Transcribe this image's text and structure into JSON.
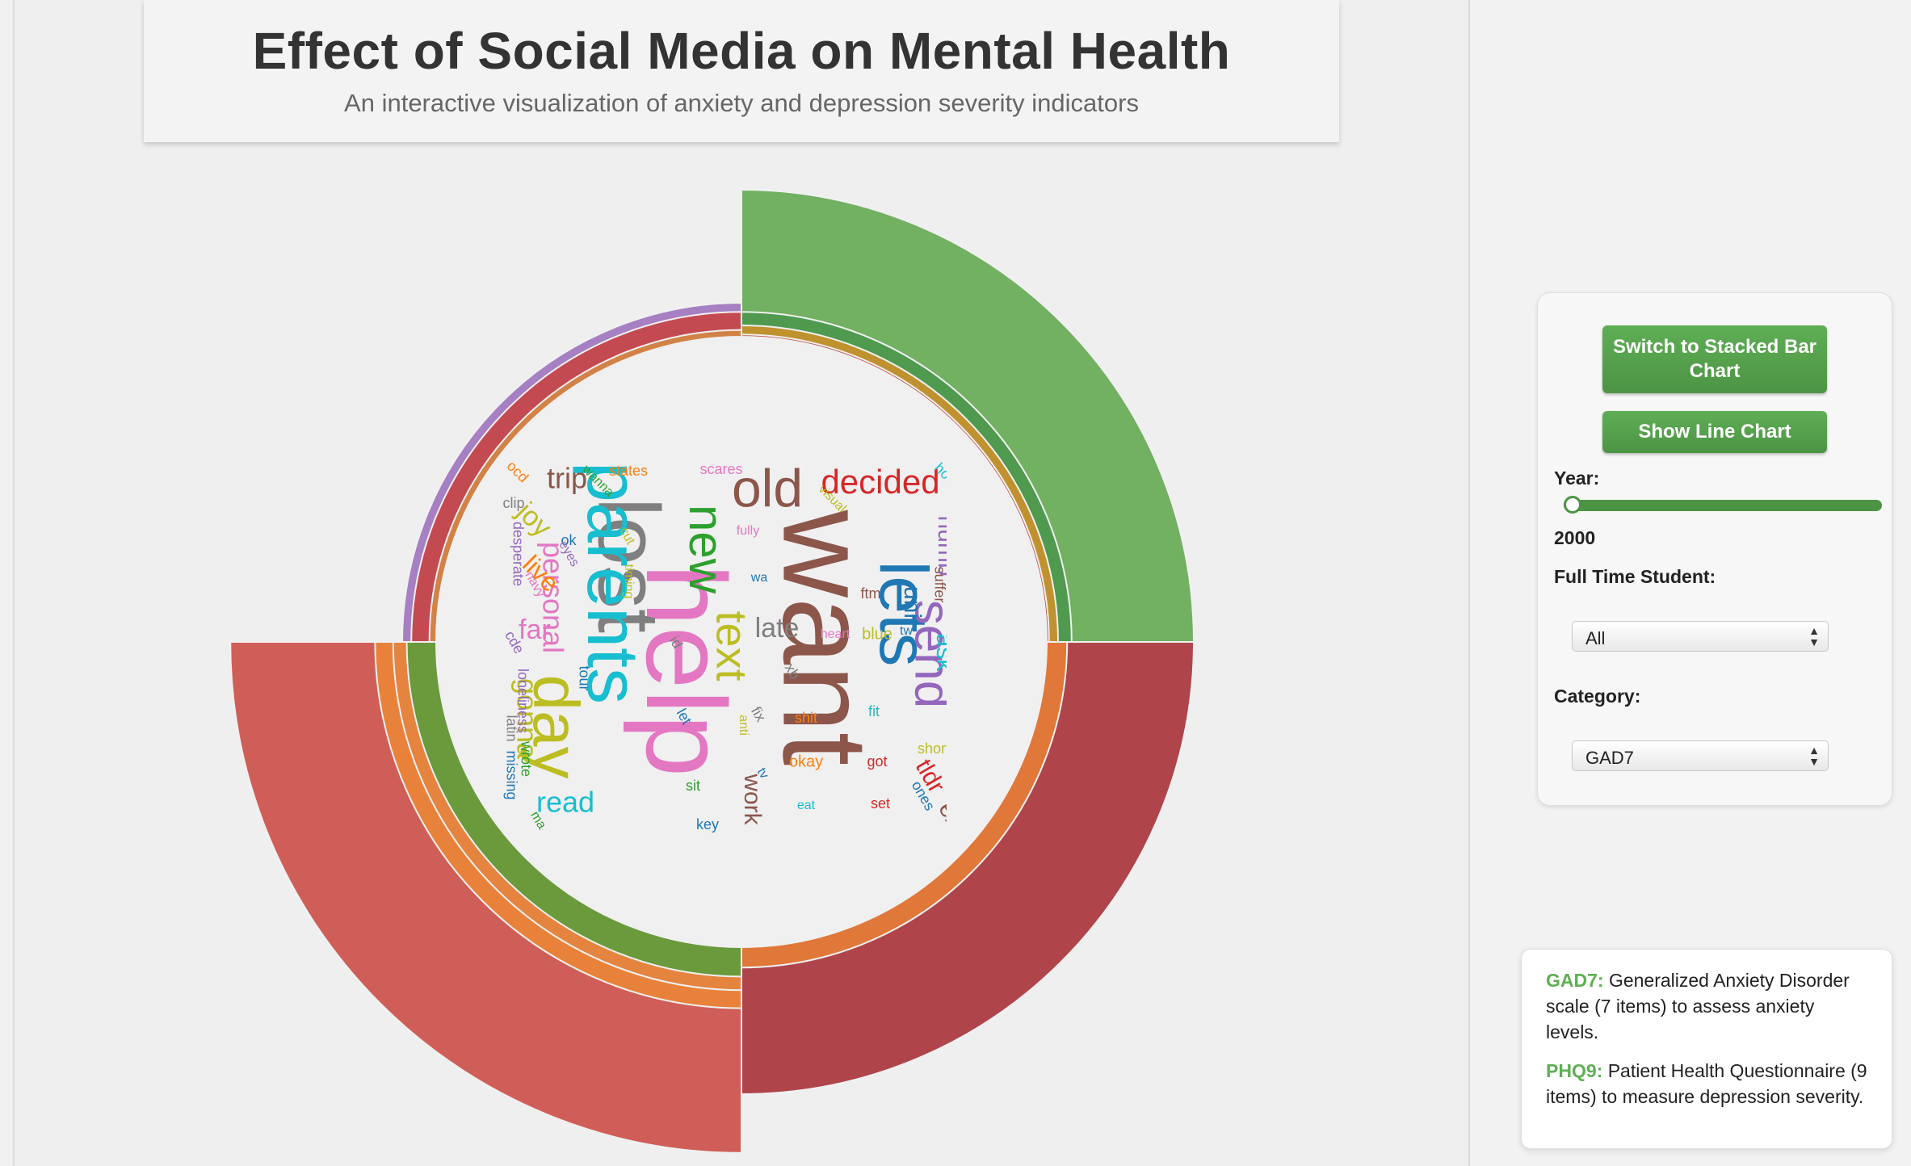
{
  "header": {
    "title": "Effect of Social Media on Mental Health",
    "subtitle": "An interactive visualization of anxiety and depression severity indicators"
  },
  "controls": {
    "stack_button": "Switch to Stacked Bar Chart",
    "line_button": "Show Line Chart",
    "year_label": "Year:",
    "year_value": "2000",
    "year_slider_level": 0,
    "student_label": "Full Time Student:",
    "student_value": "All",
    "category_label": "Category:",
    "category_value": "GAD7"
  },
  "info": {
    "gad7_key": "GAD7:",
    "gad7_text": "Generalized Anxiety Disorder scale (7 items) to assess anxiety levels.",
    "phq9_key": "PHQ9:",
    "phq9_text": "Patient Health Questionnaire (9 items) to measure depression severity."
  },
  "chart_data": {
    "type": "radial-bar",
    "quadrants": [
      {
        "quadrant": "top-right",
        "rings": [
          {
            "value": 1.0,
            "color": "#72b062"
          },
          {
            "value": 0.73,
            "color": "#4f9a4f"
          },
          {
            "value": 0.7,
            "color": "#c0922f"
          },
          {
            "value": 0.68,
            "color": "#b94a3d"
          }
        ]
      },
      {
        "quadrant": "bottom-right",
        "rings": [
          {
            "value": 1.0,
            "color": "#b0444b"
          },
          {
            "value": 0.72,
            "color": "#e0783a"
          }
        ]
      },
      {
        "quadrant": "bottom-left",
        "rings": [
          {
            "value": 1.13,
            "color": "#d05e58"
          },
          {
            "value": 0.81,
            "color": "#e8823a"
          },
          {
            "value": 0.77,
            "color": "#e4843f"
          },
          {
            "value": 0.74,
            "color": "#6a9a3c"
          }
        ]
      },
      {
        "quadrant": "top-left",
        "rings": [
          {
            "value": 0.75,
            "color": "#a680c2"
          },
          {
            "value": 0.73,
            "color": "#c44a52"
          },
          {
            "value": 0.69,
            "color": "#d28247"
          }
        ]
      }
    ],
    "wordcloud": [
      {
        "text": "want",
        "color": "#8c564b",
        "size": 150,
        "rotate": 90
      },
      {
        "text": "help",
        "color": "#e377c2",
        "size": 140,
        "rotate": 90
      },
      {
        "text": "lost",
        "color": "#7f7f7f",
        "size": 108,
        "rotate": 90
      },
      {
        "text": "parents",
        "color": "#17becf",
        "size": 90,
        "rotate": 90
      },
      {
        "text": "lets",
        "color": "#1f77b4",
        "size": 84,
        "rotate": 90
      },
      {
        "text": "day",
        "color": "#bcbd22",
        "size": 80,
        "rotate": 90
      },
      {
        "text": "old",
        "color": "#8c564b",
        "size": 66,
        "rotate": 0
      },
      {
        "text": "send",
        "color": "#9467bd",
        "size": 62,
        "rotate": 90
      },
      {
        "text": "new",
        "color": "#2ca02c",
        "size": 60,
        "rotate": 90
      },
      {
        "text": "text",
        "color": "#bcbd22",
        "size": 54,
        "rotate": 90
      },
      {
        "text": "decided",
        "color": "#d62728",
        "size": 42,
        "rotate": 0
      },
      {
        "text": "personal",
        "color": "#e377c2",
        "size": 36,
        "rotate": 90
      },
      {
        "text": "gonna",
        "color": "#bcbd22",
        "size": 36,
        "rotate": 90
      },
      {
        "text": "read",
        "color": "#17becf",
        "size": 36,
        "rotate": 0
      },
      {
        "text": "trip",
        "color": "#8c564b",
        "size": 36,
        "rotate": 0
      },
      {
        "text": "joy",
        "color": "#bcbd22",
        "size": 34,
        "rotate": 45
      },
      {
        "text": "live",
        "color": "#ff7f0e",
        "size": 32,
        "rotate": 45
      },
      {
        "text": "far",
        "color": "#e377c2",
        "size": 34,
        "rotate": 0
      },
      {
        "text": "late",
        "color": "#7f7f7f",
        "size": 34,
        "rotate": 0
      },
      {
        "text": "numb",
        "color": "#9467bd",
        "size": 30,
        "rotate": 90
      },
      {
        "text": "uni",
        "color": "#1f77b4",
        "size": 30,
        "rotate": 90
      },
      {
        "text": "ask",
        "color": "#17becf",
        "size": 30,
        "rotate": 90
      },
      {
        "text": "tldr",
        "color": "#d62728",
        "size": 30,
        "rotate": 60
      },
      {
        "text": "work",
        "color": "#8c564b",
        "size": 30,
        "rotate": 90
      },
      {
        "text": "ex",
        "color": "#8c564b",
        "size": 30,
        "rotate": 60
      },
      {
        "text": "states",
        "color": "#ff7f0e",
        "size": 18,
        "rotate": 0
      },
      {
        "text": "scares",
        "color": "#e377c2",
        "size": 18,
        "rotate": 0
      },
      {
        "text": "wanna",
        "color": "#2ca02c",
        "size": 16,
        "rotate": 45
      },
      {
        "text": "ocd",
        "color": "#ff7f0e",
        "size": 18,
        "rotate": 45
      },
      {
        "text": "clip",
        "color": "#7f7f7f",
        "size": 18,
        "rotate": 0
      },
      {
        "text": "ok",
        "color": "#1f77b4",
        "size": 18,
        "rotate": 0
      },
      {
        "text": "eyes",
        "color": "#9467bd",
        "size": 16,
        "rotate": 60
      },
      {
        "text": "navy",
        "color": "#e377c2",
        "size": 16,
        "rotate": 60
      },
      {
        "text": "desperate",
        "color": "#9467bd",
        "size": 18,
        "rotate": 90
      },
      {
        "text": "cde",
        "color": "#9467bd",
        "size": 18,
        "rotate": 60
      },
      {
        "text": "loneliness",
        "color": "#9467bd",
        "size": 18,
        "rotate": 90
      },
      {
        "text": "latin",
        "color": "#7f7f7f",
        "size": 18,
        "rotate": 90
      },
      {
        "text": "missing",
        "color": "#1f77b4",
        "size": 18,
        "rotate": 90
      },
      {
        "text": "wrote",
        "color": "#2ca02c",
        "size": 18,
        "rotate": 90
      },
      {
        "text": "tour",
        "color": "#1f77b4",
        "size": 18,
        "rotate": 90
      },
      {
        "text": "cut",
        "color": "#bcbd22",
        "size": 16,
        "rotate": 60
      },
      {
        "text": "timing",
        "color": "#bcbd22",
        "size": 16,
        "rotate": 90
      },
      {
        "text": "visual",
        "color": "#bcbd22",
        "size": 16,
        "rotate": 45
      },
      {
        "text": "fully",
        "color": "#e377c2",
        "size": 16,
        "rotate": 0
      },
      {
        "text": "wa",
        "color": "#1f77b4",
        "size": 16,
        "rotate": 0
      },
      {
        "text": "id",
        "color": "#7f7f7f",
        "size": 18,
        "rotate": 60
      },
      {
        "text": "xb",
        "color": "#7f7f7f",
        "size": 18,
        "rotate": 60
      },
      {
        "text": "let",
        "color": "#1f77b4",
        "size": 18,
        "rotate": 60
      },
      {
        "text": "anti",
        "color": "#bcbd22",
        "size": 16,
        "rotate": 90
      },
      {
        "text": "fix",
        "color": "#7f7f7f",
        "size": 18,
        "rotate": 60
      },
      {
        "text": "shit",
        "color": "#ff7f0e",
        "size": 18,
        "rotate": 0
      },
      {
        "text": "okay",
        "color": "#ff7f0e",
        "size": 20,
        "rotate": 0
      },
      {
        "text": "sit",
        "color": "#2ca02c",
        "size": 18,
        "rotate": 0
      },
      {
        "text": "key",
        "color": "#1f77b4",
        "size": 18,
        "rotate": 0
      },
      {
        "text": "tv",
        "color": "#1f77b4",
        "size": 16,
        "rotate": 60
      },
      {
        "text": "eat",
        "color": "#17becf",
        "size": 16,
        "rotate": 0
      },
      {
        "text": "set",
        "color": "#d62728",
        "size": 18,
        "rotate": 0
      },
      {
        "text": "got",
        "color": "#d62728",
        "size": 18,
        "rotate": 0
      },
      {
        "text": "ftm",
        "color": "#8c564b",
        "size": 18,
        "rotate": 0
      },
      {
        "text": "heart",
        "color": "#e377c2",
        "size": 16,
        "rotate": 0
      },
      {
        "text": "blue",
        "color": "#bcbd22",
        "size": 20,
        "rotate": 0
      },
      {
        "text": "tw",
        "color": "#1f77b4",
        "size": 16,
        "rotate": 0
      },
      {
        "text": "fit",
        "color": "#17becf",
        "size": 18,
        "rotate": 0
      },
      {
        "text": "short",
        "color": "#bcbd22",
        "size": 18,
        "rotate": 0
      },
      {
        "text": "ones",
        "color": "#1f77b4",
        "size": 18,
        "rotate": 60
      },
      {
        "text": "early",
        "color": "#bcbd22",
        "size": 18,
        "rotate": 60
      },
      {
        "text": "mass",
        "color": "#d62728",
        "size": 18,
        "rotate": 60
      },
      {
        "text": "pour",
        "color": "#7f7f7f",
        "size": 18,
        "rotate": 60
      },
      {
        "text": "torn",
        "color": "#7f7f7f",
        "size": 18,
        "rotate": 90
      },
      {
        "text": "felt",
        "color": "#bcbd22",
        "size": 18,
        "rotate": 90
      },
      {
        "text": "suffer",
        "color": "#8c564b",
        "size": 18,
        "rotate": 90
      },
      {
        "text": "abused",
        "color": "#17becf",
        "size": 18,
        "rotate": 90
      },
      {
        "text": "hour",
        "color": "#17becf",
        "size": 18,
        "rotate": 45
      },
      {
        "text": "married",
        "color": "#ff7f0e",
        "size": 16,
        "rotate": 90
      },
      {
        "text": "assholes",
        "color": "#ff7f0e",
        "size": 16,
        "rotate": 60
      },
      {
        "text": "ma",
        "color": "#2ca02c",
        "size": 16,
        "rotate": 60
      }
    ]
  }
}
